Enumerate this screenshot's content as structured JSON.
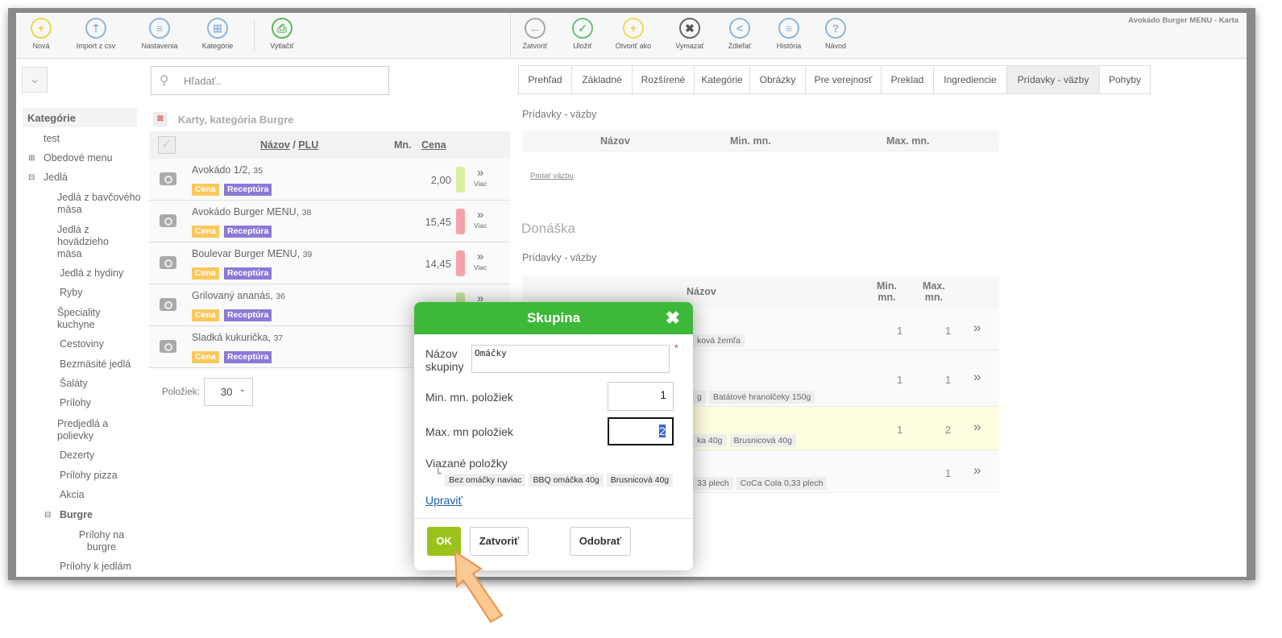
{
  "window_title": "Avokádo Burger MENU - Karta",
  "toolbar_left": [
    {
      "label": "Nová",
      "icon": "plus-icon",
      "color": "#e8d84a"
    },
    {
      "label": "Import z csv",
      "icon": "import-icon",
      "color": "#8fb6dd"
    },
    {
      "label": "Nastavenia",
      "icon": "menu-icon",
      "color": "#8fb6dd"
    },
    {
      "label": "Kategórie",
      "icon": "categories-icon",
      "color": "#8fb6dd"
    },
    {
      "label": "Vytlačiť",
      "icon": "print-icon",
      "color": "#5cb85c"
    }
  ],
  "toolbar_right": [
    {
      "label": "Zatvoriť",
      "icon": "back-arrow-icon"
    },
    {
      "label": "Uložiť",
      "icon": "check-icon"
    },
    {
      "label": "Otvoriť ako",
      "icon": "plus-icon"
    },
    {
      "label": "Vymazať",
      "icon": "delete-icon"
    },
    {
      "label": "Zdieľať",
      "icon": "share-icon"
    },
    {
      "label": "História",
      "icon": "history-icon"
    },
    {
      "label": "Návod",
      "icon": "help-icon"
    }
  ],
  "search": {
    "placeholder": "Hľadať.."
  },
  "sidebar": {
    "title": "Kategórie",
    "items": [
      "test",
      "Obedové menu",
      "Jedlá",
      "Jedlá z bavčového mäsa",
      "Jedlá z hovädzieho mäsa",
      "Jedlá z hydiny",
      "Ryby",
      "Špeciality kuchyne",
      "Cestoviny",
      "Bezmäsité jedlá",
      "Šaláty",
      "Prílohy",
      "Predjedlá a polievky",
      "Dezerty",
      "Prílohy pizza",
      "Akcia",
      "Burgre",
      "Prílohy na burgre",
      "Prílohy k jedlám"
    ]
  },
  "list": {
    "title": "Karty, kategória Burgre",
    "col_name": "Názov",
    "col_sep": "/",
    "col_plu": "PLU",
    "col_qty": "Mn.",
    "col_price": "Cena",
    "badge_price": "Cena",
    "badge_recipe": "Receptúra",
    "more": "Viac",
    "items": [
      {
        "name": "Avokádo 1/2,",
        "plu": "35",
        "price": "2,00",
        "status_color": "#d8ef9c"
      },
      {
        "name": "Avokádo Burger MENU,",
        "plu": "38",
        "price": "15,45",
        "status_color": "#f4a3a8"
      },
      {
        "name": "Boulevar Burger MENU,",
        "plu": "39",
        "price": "14,45",
        "status_color": "#f4a3a8"
      },
      {
        "name": "Grilovaný ananás,",
        "plu": "36",
        "price": "",
        "status_color": "#c5e39a"
      },
      {
        "name": "Sladká kukurička,",
        "plu": "37",
        "price": "",
        "status_color": ""
      }
    ],
    "per_page_label": "Položiek:",
    "per_page": "30"
  },
  "tabs": [
    "Prehľad",
    "Základné",
    "Rozšírené",
    "Kategórie",
    "Obrázky",
    "Pre verejnosť",
    "Preklad",
    "Ingrediencie",
    "Prídavky - väzby",
    "Pohyby"
  ],
  "active_tab": "Prídavky - väzby",
  "section1": {
    "title": "Prídavky - väzby",
    "col_name": "Názov",
    "col_min": "Min. mn.",
    "col_max": "Max. mn.",
    "add_link": "Pridať väzbu"
  },
  "section2": {
    "heading": "Donáška",
    "title": "Prídavky - väzby",
    "col_name": "Názov",
    "col_min": "Min.\nmn.",
    "col_max": "Max.\nmn.",
    "rows": [
      {
        "tags": [
          "ková žemľa"
        ],
        "min": "1",
        "max": "1"
      },
      {
        "tags": [
          "g",
          "Batátové hranolčeky 150g"
        ],
        "min": "1",
        "max": "1"
      },
      {
        "tags": [
          "ka 40g",
          "Brusnicová 40g"
        ],
        "min": "1",
        "max": "2",
        "highlight": true
      },
      {
        "tags": [
          "33 plech",
          "CoCa Cola 0,33 plech"
        ],
        "min": "",
        "max": "1"
      }
    ]
  },
  "modal": {
    "title": "Skupina",
    "name_label": "Názov skupiny",
    "name_value": "Omáčky",
    "min_label": "Min. mn. položiek",
    "min_value": "1",
    "max_label": "Max. mn položiek",
    "max_value": "2",
    "linked_label": "Viazané položky",
    "linked_items": [
      "Bez omáčky naviac",
      "BBQ omáčka 40g",
      "Brusnicová 40g"
    ],
    "edit_link": "Upraviť",
    "ok": "OK",
    "close": "Zatvoriť",
    "remove": "Odobrať",
    "header_color": "#3db83a",
    "ok_color": "#9cc31c"
  }
}
